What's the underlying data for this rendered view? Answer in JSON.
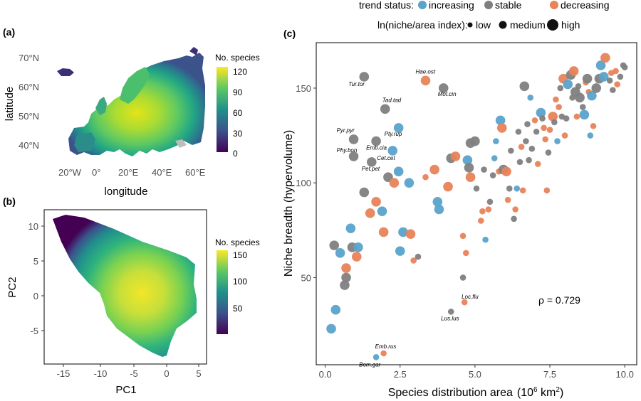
{
  "panel_labels": {
    "a": "(a)",
    "b": "(b)",
    "c": "(c)"
  },
  "colors": {
    "increasing": "#5aa3cb",
    "stable": "#7f7f7f",
    "decreasing": "#e8835a",
    "viridis": [
      "#440154",
      "#3b528b",
      "#21908c",
      "#5dc863",
      "#fde725"
    ]
  },
  "chart_data": [
    {
      "type": "heatmap",
      "panel": "a",
      "xlabel": "longitude",
      "ylabel": "latitude",
      "x_ticks": [
        "20°W",
        "0°",
        "20°E",
        "40°E",
        "60°E"
      ],
      "y_ticks": [
        "70°N",
        "60°N",
        "50°N",
        "40°N"
      ],
      "xlim": [
        -30,
        65
      ],
      "ylim": [
        34,
        76
      ],
      "colorbar": {
        "title": "No. species",
        "ticks": [
          "120",
          "90",
          "60",
          "30",
          "0"
        ],
        "range": [
          0,
          120
        ]
      }
    },
    {
      "type": "heatmap",
      "panel": "b",
      "xlabel": "PC1",
      "ylabel": "PC2",
      "x_ticks": [
        "-15",
        "-10",
        "-5",
        "0",
        "5"
      ],
      "y_ticks": [
        "10",
        "5",
        "0",
        "-5"
      ],
      "xlim": [
        -19,
        6
      ],
      "ylim": [
        -10,
        12
      ],
      "colorbar": {
        "title": "No. species",
        "ticks": [
          "150",
          "100",
          "50"
        ],
        "range": [
          0,
          160
        ]
      }
    },
    {
      "type": "scatter",
      "panel": "c",
      "xlabel": "Species distribution area",
      "xlabel_unit": "(10",
      "xlabel_exp": "6",
      "xlabel_unit2": " km",
      "xlabel_exp2": "2",
      "xlabel_close": ")",
      "ylabel": "Niche breadth (hypervolume)",
      "x_ticks": [
        0.0,
        2.5,
        5.0,
        7.5,
        10.0
      ],
      "x_tick_labels": [
        "0.0",
        "2.5",
        "5.0",
        "7.5",
        "10.0"
      ],
      "y_ticks": [
        50,
        100,
        150
      ],
      "y_tick_labels": [
        "50",
        "100",
        "150"
      ],
      "xlim": [
        -0.3,
        10.4
      ],
      "ylim": [
        4,
        174
      ],
      "annotation": "ρ = 0.729",
      "legend": {
        "trend_title": "trend status:",
        "trend_items": [
          {
            "key": "increasing",
            "label": "increasing"
          },
          {
            "key": "stable",
            "label": "stable"
          },
          {
            "key": "decreasing",
            "label": "decreasing"
          }
        ],
        "size_title": "ln(niche/area index):",
        "size_items": [
          {
            "key": "low",
            "label": "low",
            "s": 1
          },
          {
            "key": "medium",
            "label": "medium",
            "s": 2
          },
          {
            "key": "high",
            "label": "high",
            "s": 3
          }
        ]
      },
      "points": [
        {
          "x": 0.2,
          "y": 23,
          "s": 2,
          "t": "increasing"
        },
        {
          "x": 0.35,
          "y": 33,
          "s": 2,
          "t": "increasing"
        },
        {
          "x": 0.3,
          "y": 67,
          "s": 2,
          "t": "stable"
        },
        {
          "x": 0.5,
          "y": 63,
          "s": 2,
          "t": "increasing"
        },
        {
          "x": 0.65,
          "y": 46,
          "s": 2,
          "t": "stable"
        },
        {
          "x": 0.7,
          "y": 50,
          "s": 2,
          "t": "stable"
        },
        {
          "x": 0.7,
          "y": 55,
          "s": 2,
          "t": "decreasing"
        },
        {
          "x": 0.85,
          "y": 76,
          "s": 2,
          "t": "increasing"
        },
        {
          "x": 0.9,
          "y": 66,
          "s": 2,
          "t": "stable"
        },
        {
          "x": 1.05,
          "y": 61,
          "s": 2,
          "t": "decreasing"
        },
        {
          "x": 1.1,
          "y": 66,
          "s": 2,
          "t": "increasing"
        },
        {
          "x": 1.3,
          "y": 95,
          "s": 2,
          "t": "stable"
        },
        {
          "x": 1.5,
          "y": 84,
          "s": 2,
          "t": "decreasing"
        },
        {
          "x": 1.7,
          "y": 90,
          "s": 2,
          "t": "decreasing"
        },
        {
          "x": 1.9,
          "y": 85,
          "s": 2,
          "t": "increasing"
        },
        {
          "x": 1.95,
          "y": 74,
          "s": 2,
          "t": "decreasing"
        },
        {
          "x": 2.1,
          "y": 103,
          "s": 2,
          "t": "stable"
        },
        {
          "x": 2.3,
          "y": 100,
          "s": 2,
          "t": "decreasing"
        },
        {
          "x": 2.45,
          "y": 106,
          "s": 2,
          "t": "increasing"
        },
        {
          "x": 2.5,
          "y": 64,
          "s": 2,
          "t": "increasing"
        },
        {
          "x": 2.6,
          "y": 74,
          "s": 2,
          "t": "increasing"
        },
        {
          "x": 2.8,
          "y": 100,
          "s": 2,
          "t": "increasing"
        },
        {
          "x": 2.85,
          "y": 73,
          "s": 2,
          "t": "decreasing"
        },
        {
          "x": 2.95,
          "y": 59,
          "s": 1,
          "t": "decreasing"
        },
        {
          "x": 3.1,
          "y": 61,
          "s": 1,
          "t": "stable"
        },
        {
          "x": 3.35,
          "y": 103,
          "s": 1,
          "t": "decreasing"
        },
        {
          "x": 3.65,
          "y": 107,
          "s": 2,
          "t": "decreasing"
        },
        {
          "x": 3.75,
          "y": 90,
          "s": 2,
          "t": "increasing"
        },
        {
          "x": 3.8,
          "y": 86,
          "s": 2,
          "t": "increasing"
        },
        {
          "x": 4.1,
          "y": 98,
          "s": 2,
          "t": "decreasing"
        },
        {
          "x": 4.2,
          "y": 113,
          "s": 2,
          "t": "stable"
        },
        {
          "x": 4.35,
          "y": 114,
          "s": 2,
          "t": "decreasing"
        },
        {
          "x": 4.6,
          "y": 50,
          "s": 1,
          "t": "stable"
        },
        {
          "x": 4.6,
          "y": 72,
          "s": 1,
          "t": "decreasing"
        },
        {
          "x": 4.7,
          "y": 63,
          "s": 1,
          "t": "decreasing"
        },
        {
          "x": 4.75,
          "y": 112,
          "s": 2,
          "t": "increasing"
        },
        {
          "x": 4.8,
          "y": 108,
          "s": 2,
          "t": "stable"
        },
        {
          "x": 4.85,
          "y": 103,
          "s": 2,
          "t": "decreasing"
        },
        {
          "x": 4.85,
          "y": 121,
          "s": 2,
          "t": "stable"
        },
        {
          "x": 5.0,
          "y": 122,
          "s": 2,
          "t": "stable"
        },
        {
          "x": 5.05,
          "y": 97,
          "s": 1,
          "t": "stable"
        },
        {
          "x": 5.2,
          "y": 80,
          "s": 1,
          "t": "decreasing"
        },
        {
          "x": 5.25,
          "y": 85,
          "s": 1,
          "t": "decreasing"
        },
        {
          "x": 5.3,
          "y": 107,
          "s": 1,
          "t": "stable"
        },
        {
          "x": 5.35,
          "y": 70,
          "s": 1,
          "t": "increasing"
        },
        {
          "x": 5.45,
          "y": 86,
          "s": 1,
          "t": "decreasing"
        },
        {
          "x": 5.5,
          "y": 90,
          "s": 1,
          "t": "stable"
        },
        {
          "x": 5.6,
          "y": 104,
          "s": 1,
          "t": "stable"
        },
        {
          "x": 5.65,
          "y": 113,
          "s": 1,
          "t": "increasing"
        },
        {
          "x": 5.7,
          "y": 122,
          "s": 1,
          "t": "increasing"
        },
        {
          "x": 5.8,
          "y": 106,
          "s": 1,
          "t": "decreasing"
        },
        {
          "x": 5.85,
          "y": 133,
          "s": 2,
          "t": "increasing"
        },
        {
          "x": 5.9,
          "y": 129,
          "s": 2,
          "t": "decreasing"
        },
        {
          "x": 5.95,
          "y": 107,
          "s": 2,
          "t": "stable"
        },
        {
          "x": 6.05,
          "y": 106,
          "s": 2,
          "t": "decreasing"
        },
        {
          "x": 6.1,
          "y": 91,
          "s": 1,
          "t": "decreasing"
        },
        {
          "x": 6.15,
          "y": 97,
          "s": 1,
          "t": "stable"
        },
        {
          "x": 6.2,
          "y": 117,
          "s": 1,
          "t": "stable"
        },
        {
          "x": 6.3,
          "y": 81,
          "s": 1,
          "t": "stable"
        },
        {
          "x": 6.35,
          "y": 86,
          "s": 1,
          "t": "decreasing"
        },
        {
          "x": 6.4,
          "y": 97,
          "s": 1,
          "t": "increasing"
        },
        {
          "x": 6.45,
          "y": 127,
          "s": 1,
          "t": "stable"
        },
        {
          "x": 6.5,
          "y": 111,
          "s": 1,
          "t": "stable"
        },
        {
          "x": 6.55,
          "y": 119,
          "s": 1,
          "t": "decreasing"
        },
        {
          "x": 6.6,
          "y": 96,
          "s": 1,
          "t": "decreasing"
        },
        {
          "x": 6.65,
          "y": 151,
          "s": 2,
          "t": "stable"
        },
        {
          "x": 6.7,
          "y": 122,
          "s": 1,
          "t": "stable"
        },
        {
          "x": 6.75,
          "y": 131,
          "s": 1,
          "t": "stable"
        },
        {
          "x": 6.8,
          "y": 112,
          "s": 1,
          "t": "stable"
        },
        {
          "x": 6.85,
          "y": 145,
          "s": 1,
          "t": "increasing"
        },
        {
          "x": 6.9,
          "y": 118,
          "s": 1,
          "t": "stable"
        },
        {
          "x": 7.0,
          "y": 133,
          "s": 1,
          "t": "decreasing"
        },
        {
          "x": 7.05,
          "y": 127,
          "s": 1,
          "t": "stable"
        },
        {
          "x": 7.1,
          "y": 110,
          "s": 1,
          "t": "decreasing"
        },
        {
          "x": 7.2,
          "y": 137,
          "s": 2,
          "t": "increasing"
        },
        {
          "x": 7.25,
          "y": 134,
          "s": 1,
          "t": "stable"
        },
        {
          "x": 7.3,
          "y": 129,
          "s": 1,
          "t": "decreasing"
        },
        {
          "x": 7.35,
          "y": 123,
          "s": 1,
          "t": "decreasing"
        },
        {
          "x": 7.4,
          "y": 96,
          "s": 1,
          "t": "decreasing"
        },
        {
          "x": 7.45,
          "y": 116,
          "s": 1,
          "t": "stable"
        },
        {
          "x": 7.5,
          "y": 128,
          "s": 1,
          "t": "decreasing"
        },
        {
          "x": 7.6,
          "y": 135,
          "s": 2,
          "t": "decreasing"
        },
        {
          "x": 7.65,
          "y": 132,
          "s": 1,
          "t": "stable"
        },
        {
          "x": 7.7,
          "y": 144,
          "s": 1,
          "t": "decreasing"
        },
        {
          "x": 7.75,
          "y": 122,
          "s": 1,
          "t": "increasing"
        },
        {
          "x": 7.8,
          "y": 140,
          "s": 1,
          "t": "decreasing"
        },
        {
          "x": 7.85,
          "y": 150,
          "s": 1,
          "t": "stable"
        },
        {
          "x": 7.9,
          "y": 135,
          "s": 1,
          "t": "stable"
        },
        {
          "x": 7.95,
          "y": 155,
          "s": 2,
          "t": "decreasing"
        },
        {
          "x": 8.0,
          "y": 125,
          "s": 1,
          "t": "decreasing"
        },
        {
          "x": 8.05,
          "y": 134,
          "s": 1,
          "t": "stable"
        },
        {
          "x": 8.1,
          "y": 152,
          "s": 2,
          "t": "increasing"
        },
        {
          "x": 8.2,
          "y": 157,
          "s": 2,
          "t": "stable"
        },
        {
          "x": 8.25,
          "y": 145,
          "s": 1,
          "t": "stable"
        },
        {
          "x": 8.3,
          "y": 159,
          "s": 2,
          "t": "decreasing"
        },
        {
          "x": 8.35,
          "y": 148,
          "s": 2,
          "t": "stable"
        },
        {
          "x": 8.4,
          "y": 135,
          "s": 1,
          "t": "decreasing"
        },
        {
          "x": 8.45,
          "y": 151,
          "s": 1,
          "t": "stable"
        },
        {
          "x": 8.5,
          "y": 145,
          "s": 2,
          "t": "stable"
        },
        {
          "x": 8.6,
          "y": 140,
          "s": 1,
          "t": "stable"
        },
        {
          "x": 8.65,
          "y": 136,
          "s": 2,
          "t": "increasing"
        },
        {
          "x": 8.7,
          "y": 153,
          "s": 1,
          "t": "decreasing"
        },
        {
          "x": 8.75,
          "y": 155,
          "s": 2,
          "t": "stable"
        },
        {
          "x": 8.8,
          "y": 148,
          "s": 1,
          "t": "decreasing"
        },
        {
          "x": 8.85,
          "y": 125,
          "s": 1,
          "t": "increasing"
        },
        {
          "x": 8.9,
          "y": 146,
          "s": 2,
          "t": "increasing"
        },
        {
          "x": 8.95,
          "y": 130,
          "s": 1,
          "t": "decreasing"
        },
        {
          "x": 9.05,
          "y": 150,
          "s": 2,
          "t": "stable"
        },
        {
          "x": 9.15,
          "y": 155,
          "s": 2,
          "t": "stable"
        },
        {
          "x": 9.2,
          "y": 162,
          "s": 2,
          "t": "increasing"
        },
        {
          "x": 9.3,
          "y": 156,
          "s": 2,
          "t": "increasing"
        },
        {
          "x": 9.35,
          "y": 166,
          "s": 2,
          "t": "decreasing"
        },
        {
          "x": 9.5,
          "y": 154,
          "s": 1,
          "t": "stable"
        },
        {
          "x": 9.55,
          "y": 158,
          "s": 1,
          "t": "decreasing"
        },
        {
          "x": 9.6,
          "y": 149,
          "s": 1,
          "t": "stable"
        },
        {
          "x": 9.7,
          "y": 159,
          "s": 1,
          "t": "decreasing"
        },
        {
          "x": 9.75,
          "y": 152,
          "s": 1,
          "t": "decreasing"
        },
        {
          "x": 9.85,
          "y": 156,
          "s": 1,
          "t": "stable"
        },
        {
          "x": 9.95,
          "y": 162,
          "s": 1,
          "t": "stable"
        },
        {
          "x": 10.0,
          "y": 161,
          "s": 1,
          "t": "stable"
        },
        {
          "x": 3.35,
          "y": 154,
          "s": 2,
          "t": "decreasing",
          "label": "Hae.ost"
        },
        {
          "x": 1.3,
          "y": 156,
          "s": 2,
          "t": "stable",
          "label": "Tur.tor"
        },
        {
          "x": 3.95,
          "y": 150,
          "s": 2,
          "t": "stable",
          "label": "Mot.cin"
        },
        {
          "x": 2.0,
          "y": 139,
          "s": 2,
          "t": "stable",
          "label": "Tad.tad"
        },
        {
          "x": 0.95,
          "y": 123,
          "s": 2,
          "t": "stable",
          "label": "Pyr.pyr"
        },
        {
          "x": 2.45,
          "y": 129,
          "s": 2,
          "t": "increasing",
          "label": "Pty.rup"
        },
        {
          "x": 1.7,
          "y": 122,
          "s": 2,
          "t": "stable",
          "label": "Emb.cia"
        },
        {
          "x": 2.25,
          "y": 117,
          "s": 2,
          "t": "increasing",
          "label": "Cet.cet"
        },
        {
          "x": 0.95,
          "y": 114,
          "s": 2,
          "t": "stable",
          "label": "Phy.bon"
        },
        {
          "x": 1.55,
          "y": 111,
          "s": 2,
          "t": "stable",
          "label": "Pet.pet"
        },
        {
          "x": 4.65,
          "y": 37,
          "s": 1,
          "t": "decreasing",
          "label": "Loc.flu"
        },
        {
          "x": 4.2,
          "y": 32,
          "s": 1,
          "t": "stable",
          "label": "Lus.lus"
        },
        {
          "x": 1.95,
          "y": 10,
          "s": 1,
          "t": "decreasing",
          "label": "Emb.rus"
        },
        {
          "x": 1.7,
          "y": 8,
          "s": 1,
          "t": "increasing",
          "label": "Bom.gar"
        }
      ]
    }
  ]
}
